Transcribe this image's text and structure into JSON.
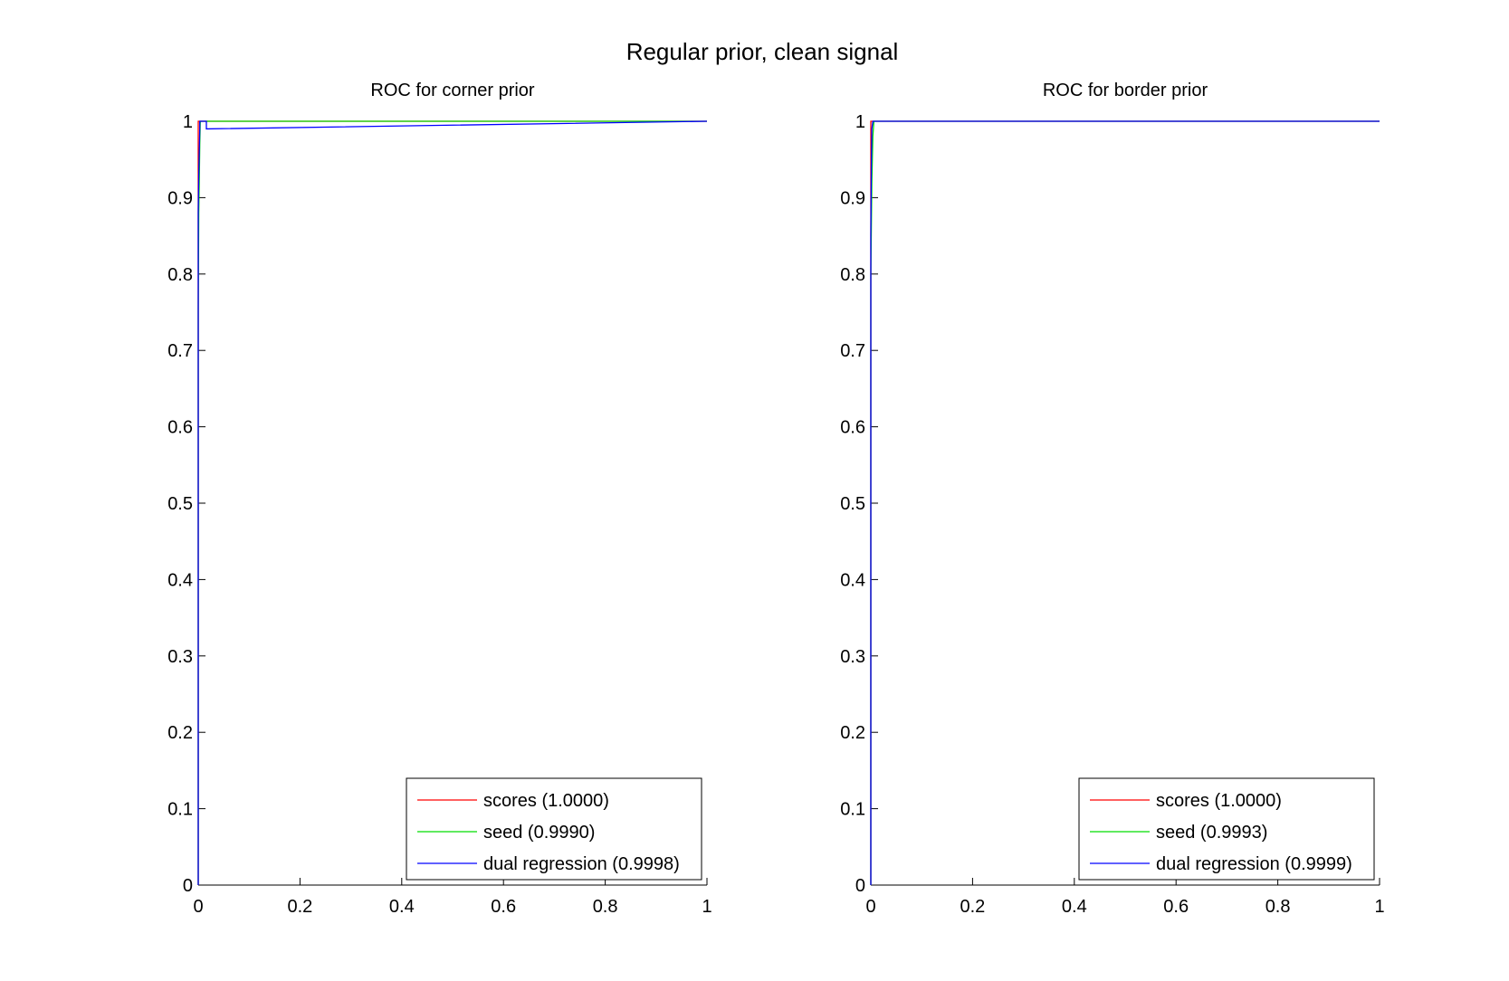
{
  "figure_title": "Regular prior, clean signal",
  "chart_data": [
    {
      "type": "line",
      "title": "ROC for corner prior",
      "xlabel": "",
      "ylabel": "",
      "xlim": [
        0,
        1
      ],
      "ylim": [
        0,
        1
      ],
      "xticks": [
        "0",
        "0.2",
        "0.4",
        "0.6",
        "0.8",
        "1"
      ],
      "yticks": [
        "0",
        "0.1",
        "0.2",
        "0.3",
        "0.4",
        "0.5",
        "0.6",
        "0.7",
        "0.8",
        "0.9",
        "1"
      ],
      "grid": false,
      "legend_position": "bottom-right",
      "series": [
        {
          "name": "scores (1.0000)",
          "color": "#ff0000",
          "x": [
            0,
            0,
            0,
            1
          ],
          "y": [
            0,
            0.97,
            1,
            1
          ]
        },
        {
          "name": "seed (0.9990)",
          "color": "#00dd00",
          "x": [
            0,
            0,
            0.001,
            0.002,
            0.003,
            0.004,
            1
          ],
          "y": [
            0,
            0.75,
            0.88,
            0.92,
            0.97,
            1,
            1
          ]
        },
        {
          "name": "dual regression (0.9998)",
          "color": "#0000ff",
          "x": [
            0,
            0,
            0.001,
            0.003,
            0.003,
            0.016,
            0.016,
            1
          ],
          "y": [
            0,
            0.88,
            0.93,
            0.99,
            1,
            1,
            0.99,
            1
          ]
        }
      ]
    },
    {
      "type": "line",
      "title": "ROC for border prior",
      "xlabel": "",
      "ylabel": "",
      "xlim": [
        0,
        1
      ],
      "ylim": [
        0,
        1
      ],
      "xticks": [
        "0",
        "0.2",
        "0.4",
        "0.6",
        "0.8",
        "1"
      ],
      "yticks": [
        "0",
        "0.1",
        "0.2",
        "0.3",
        "0.4",
        "0.5",
        "0.6",
        "0.7",
        "0.8",
        "0.9",
        "1"
      ],
      "grid": false,
      "legend_position": "bottom-right",
      "series": [
        {
          "name": "scores (1.0000)",
          "color": "#ff0000",
          "x": [
            0,
            0,
            0,
            1
          ],
          "y": [
            0,
            0.97,
            1,
            1
          ]
        },
        {
          "name": "seed (0.9993)",
          "color": "#00dd00",
          "x": [
            0,
            0,
            0.002,
            0.004,
            0.006,
            1
          ],
          "y": [
            0,
            0.8,
            0.92,
            0.98,
            1,
            1
          ]
        },
        {
          "name": "dual regression (0.9999)",
          "color": "#0000ff",
          "x": [
            0,
            0,
            0.001,
            0.002,
            0.004,
            1
          ],
          "y": [
            0,
            0.85,
            0.94,
            0.99,
            1,
            1
          ]
        }
      ]
    }
  ]
}
